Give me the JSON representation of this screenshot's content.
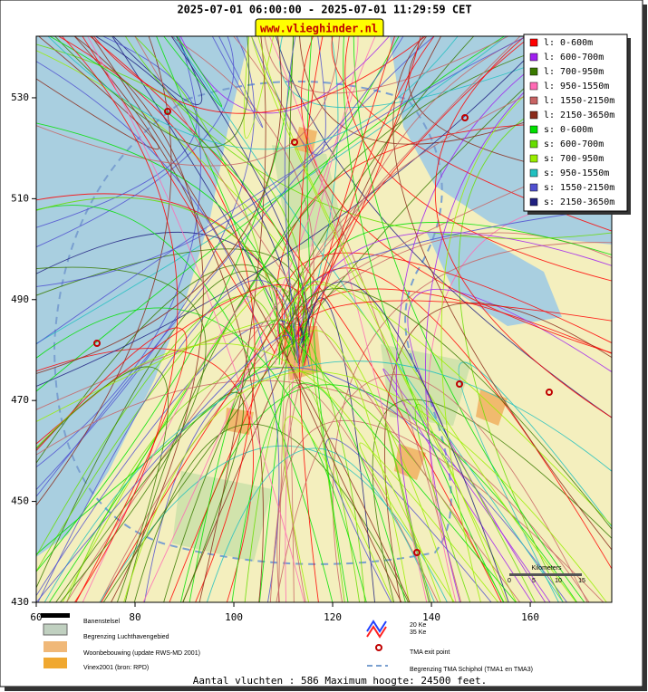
{
  "header": {
    "title": "2025-07-01 06:00:00 - 2025-07-01 11:29:59 CET",
    "site": "www.vlieghinder.nl"
  },
  "map": {
    "xlim": [
      60,
      176.5
    ],
    "ylim": [
      430,
      542.2
    ],
    "xticks": [
      60,
      80,
      100,
      120,
      140,
      160
    ],
    "yticks": [
      430,
      450,
      470,
      490,
      510,
      530
    ]
  },
  "legend": [
    {
      "label": "l: 0-600m",
      "color": "#ff0000"
    },
    {
      "label": "l: 600-700m",
      "color": "#a020f0"
    },
    {
      "label": "l: 700-950m",
      "color": "#3a7a00"
    },
    {
      "label": "l: 950-1550m",
      "color": "#ff69b4"
    },
    {
      "label": "l: 1550-2150m",
      "color": "#c86464"
    },
    {
      "label": "l: 2150-3650m",
      "color": "#8b2a1a"
    },
    {
      "label": "s: 0-600m",
      "color": "#00e000"
    },
    {
      "label": "s: 600-700m",
      "color": "#66dd00"
    },
    {
      "label": "s: 700-950m",
      "color": "#99ee00"
    },
    {
      "label": "s: 950-1550m",
      "color": "#20c0c0"
    },
    {
      "label": "s: 1550-2150m",
      "color": "#5050d0"
    },
    {
      "label": "s: 2150-3650m",
      "color": "#202080"
    }
  ],
  "scale_bar": {
    "title": "Kilometers",
    "labels": [
      "0",
      "5",
      "10",
      "15"
    ]
  },
  "key": {
    "runways": "Banenstelsel",
    "airport_boundary": "Begrenzing Luchthavengebied",
    "housing": "Woonbebouwing (update RWS-MD 2001)",
    "vinex": "Vinex2001 (bron: RPD)",
    "ke20": "20 Ke",
    "ke35": "35 Ke",
    "tma_exit": "TMA exit point",
    "tma_boundary": "Begrenzing TMA Schiphol  (TMA1 en TMA3)"
  },
  "footer": "Aantal vluchten : 586 Maximum hoogte: 24500 feet."
}
